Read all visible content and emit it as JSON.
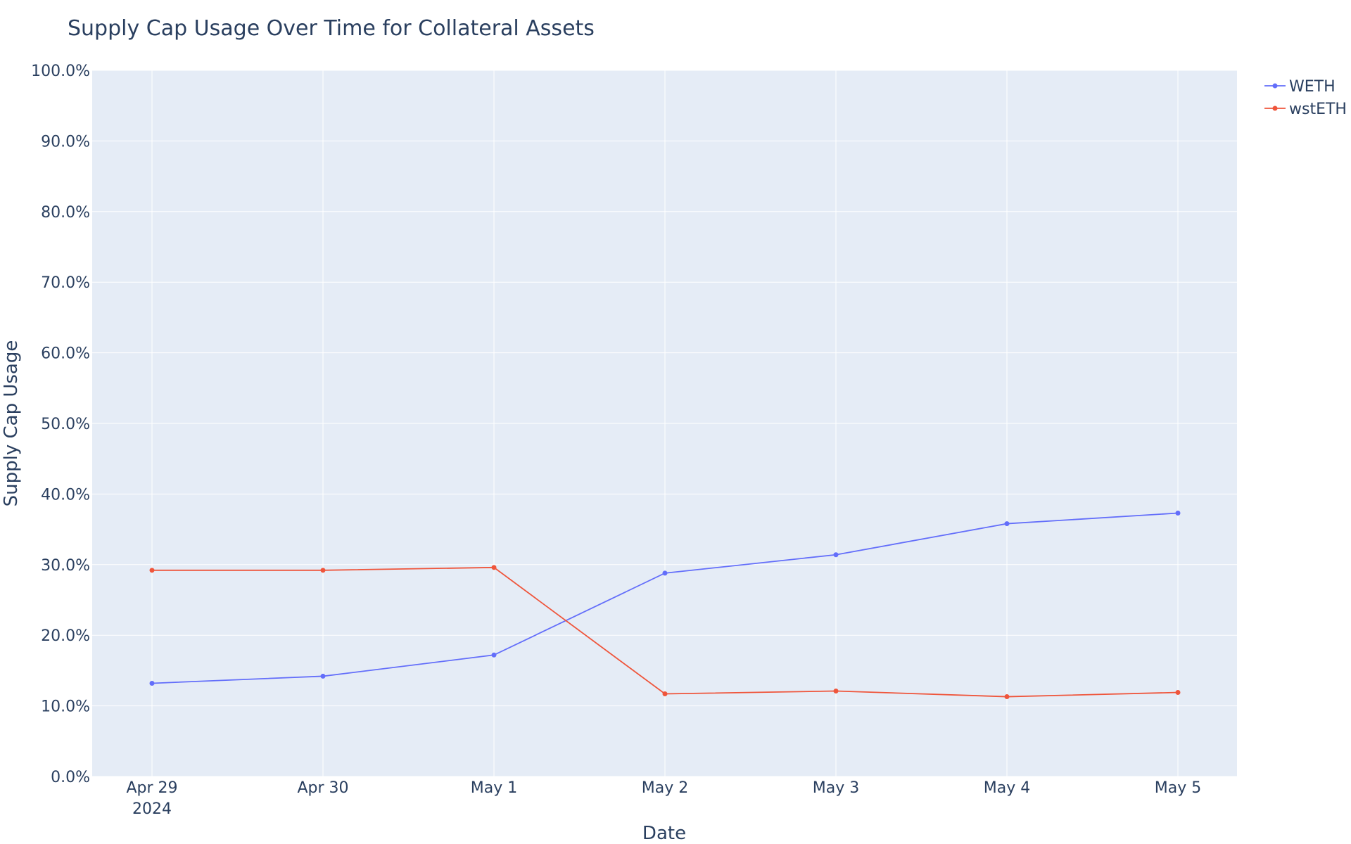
{
  "chart_data": {
    "type": "line",
    "title": "Supply Cap Usage Over Time for Collateral Assets",
    "xlabel": "Date",
    "ylabel": "Supply Cap Usage",
    "x": [
      "Apr 29",
      "Apr 30",
      "May 1",
      "May 2",
      "May 3",
      "May 4",
      "May 5"
    ],
    "x_year_label": "2024",
    "yticks": [
      "0.0%",
      "10.0%",
      "20.0%",
      "30.0%",
      "40.0%",
      "50.0%",
      "60.0%",
      "70.0%",
      "80.0%",
      "90.0%",
      "100.0%"
    ],
    "ylim": [
      0,
      1
    ],
    "grid": true,
    "legend_position": "top-right",
    "series": [
      {
        "name": "WETH",
        "color": "#636efa",
        "values": [
          0.132,
          0.142,
          0.172,
          0.288,
          0.314,
          0.358,
          0.373
        ]
      },
      {
        "name": "wstETH",
        "color": "#ef553b",
        "values": [
          0.292,
          0.292,
          0.296,
          0.117,
          0.121,
          0.113,
          0.119
        ]
      }
    ]
  },
  "colors": {
    "plot_background": "#e5ecf6",
    "grid": "#ffffff",
    "text": "#2a3f5f"
  }
}
